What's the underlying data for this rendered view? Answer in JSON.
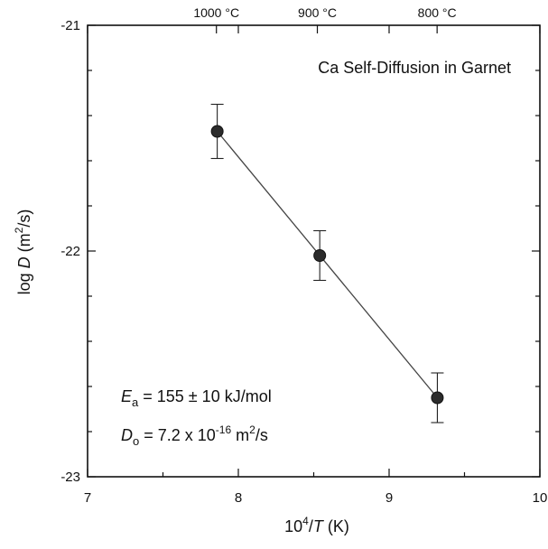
{
  "chart_data": {
    "type": "scatter",
    "title": "Ca Self-Diffusion in Garnet",
    "xlabel": {
      "prefix": "10",
      "sup": "4",
      "slash": "/",
      "var": "T",
      "unit": " (K)"
    },
    "ylabel": {
      "prefix": "log ",
      "var": "D",
      "unit_open": " (m",
      "sup": "2",
      "unit_close": "/s)"
    },
    "xlim": [
      7,
      10
    ],
    "ylim": [
      -23,
      -21
    ],
    "x_ticks": [
      "7",
      "8",
      "9",
      "10"
    ],
    "y_ticks": [
      "-21",
      "-22",
      "-23"
    ],
    "top_axis_ticks": [
      {
        "label": "1000 °C",
        "temperature_c": 1000
      },
      {
        "label": "900 °C",
        "temperature_c": 900
      },
      {
        "label": "800 °C",
        "temperature_c": 800
      }
    ],
    "grid": false,
    "series": [
      {
        "points": [
          {
            "x": 7.86,
            "y": -21.47,
            "err": 0.12
          },
          {
            "x": 8.54,
            "y": -22.02,
            "err": 0.11
          },
          {
            "x": 9.32,
            "y": -22.65,
            "err": 0.11
          }
        ],
        "fit_line": {
          "x": [
            7.86,
            9.32
          ],
          "y": [
            -21.47,
            -22.65
          ]
        }
      }
    ],
    "annotations": {
      "ea": {
        "var": "E",
        "sub": "a",
        "text": " = 155 ± 10 kJ/mol"
      },
      "d0": {
        "var": "D",
        "sub": "o",
        "text_a": " = 7.2 x 10",
        "sup1": "-16",
        "text_b": " m",
        "sup2": "2",
        "text_c": "/s"
      }
    }
  }
}
